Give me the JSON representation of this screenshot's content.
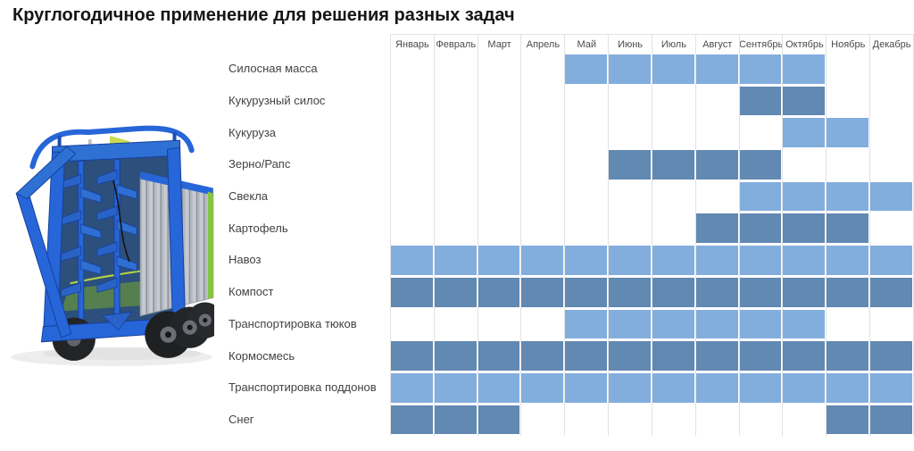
{
  "page": {
    "title": "Круглогодичное применение для решения разных задач"
  },
  "colors": {
    "light_cell": "#82aede",
    "dark_cell": "#6189b2",
    "grid_line": "#e2e2e2",
    "header_text": "#4a4a4a",
    "label_text": "#424242",
    "title_text": "#151515",
    "trailer_blue": "#2766d8",
    "trailer_blue_dark": "#17419e",
    "trailer_silver": "#c6cad1",
    "trailer_green": "#86c540"
  },
  "chart_data": {
    "type": "heatmap",
    "title": "Круглогодичное применение для решения разных задач",
    "xlabel": "",
    "ylabel": "",
    "legend_position": "none",
    "grid": true,
    "months": [
      "Январь",
      "Февраль",
      "Март",
      "Апрель",
      "Май",
      "Июнь",
      "Июль",
      "Август",
      "Сентябрь",
      "Октябрь",
      "Ноябрь",
      "Декабрь"
    ],
    "rows": [
      {
        "label": "Силосная масса",
        "shade": "light",
        "active_months": [
          "Май",
          "Июнь",
          "Июль",
          "Август",
          "Сентябрь",
          "Октябрь"
        ]
      },
      {
        "label": "Кукурузный силос",
        "shade": "dark",
        "active_months": [
          "Сентябрь",
          "Октябрь"
        ]
      },
      {
        "label": "Кукуруза",
        "shade": "light",
        "active_months": [
          "Октябрь",
          "Ноябрь"
        ]
      },
      {
        "label": "Зерно/Рапс",
        "shade": "dark",
        "active_months": [
          "Июнь",
          "Июль",
          "Август",
          "Сентябрь"
        ]
      },
      {
        "label": "Свекла",
        "shade": "light",
        "active_months": [
          "Сентябрь",
          "Октябрь",
          "Ноябрь",
          "Декабрь"
        ]
      },
      {
        "label": "Картофель",
        "shade": "dark",
        "active_months": [
          "Август",
          "Сентябрь",
          "Октябрь",
          "Ноябрь"
        ]
      },
      {
        "label": "Навоз",
        "shade": "light",
        "active_months": [
          "Январь",
          "Февраль",
          "Март",
          "Апрель",
          "Май",
          "Июнь",
          "Июль",
          "Август",
          "Сентябрь",
          "Октябрь",
          "Ноябрь",
          "Декабрь"
        ]
      },
      {
        "label": "Компост",
        "shade": "dark",
        "active_months": [
          "Январь",
          "Февраль",
          "Март",
          "Апрель",
          "Май",
          "Июнь",
          "Июль",
          "Август",
          "Сентябрь",
          "Октябрь",
          "Ноябрь",
          "Декабрь"
        ]
      },
      {
        "label": "Транспортировка тюков",
        "shade": "light",
        "active_months": [
          "Май",
          "Июнь",
          "Июль",
          "Август",
          "Сентябрь",
          "Октябрь"
        ]
      },
      {
        "label": "Кормосмесь",
        "shade": "dark",
        "active_months": [
          "Январь",
          "Февраль",
          "Март",
          "Апрель",
          "Май",
          "Июнь",
          "Июль",
          "Август",
          "Сентябрь",
          "Октябрь",
          "Ноябрь",
          "Декабрь"
        ]
      },
      {
        "label": "Транспортировка поддонов",
        "shade": "light",
        "active_months": [
          "Январь",
          "Февраль",
          "Март",
          "Апрель",
          "Май",
          "Июнь",
          "Июль",
          "Август",
          "Сентябрь",
          "Октябрь",
          "Ноябрь",
          "Декабрь"
        ]
      },
      {
        "label": "Снег",
        "shade": "dark",
        "active_months": [
          "Январь",
          "Февраль",
          "Март",
          "Ноябрь",
          "Декабрь"
        ]
      }
    ]
  },
  "hero_image": {
    "icon": "blue-forage-trailer-photo"
  }
}
